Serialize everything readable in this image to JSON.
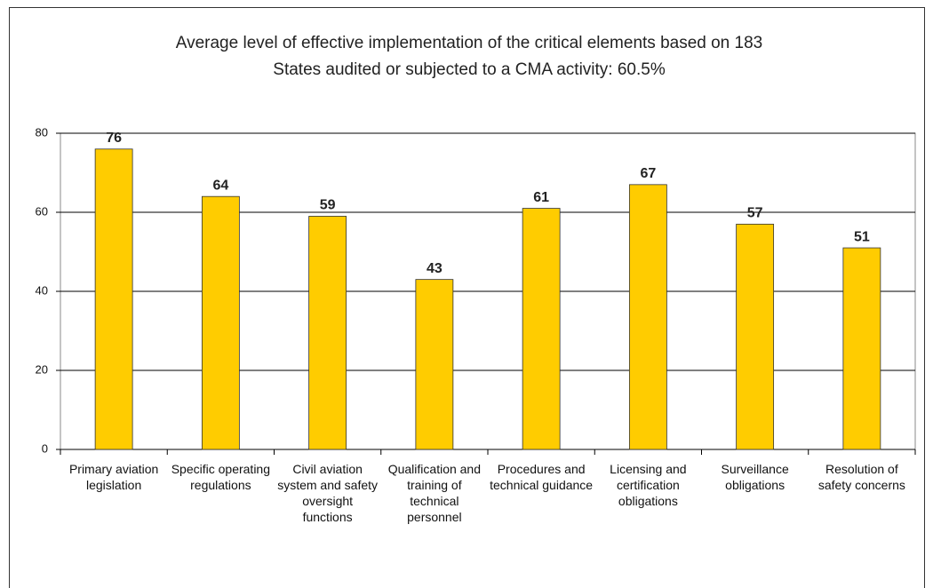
{
  "chart_data": {
    "type": "bar",
    "title": "Average level of effective implementation of the critical elements based on 183 States audited or subjected to a CMA activity: 60.5%",
    "categories": [
      "Primary aviation legislation",
      "Specific operating regulations",
      "Civil aviation system and safety oversight functions",
      "Qualification and training of technical personnel",
      "Procedures and technical guidance",
      "Licensing and certification obligations",
      "Surveillance obligations",
      "Resolution of safety concerns"
    ],
    "values": [
      76,
      64,
      59,
      43,
      61,
      67,
      57,
      51
    ],
    "color": "#ffcc00",
    "ylim": [
      0,
      80
    ],
    "yticks": [
      0,
      20,
      40,
      60,
      80
    ],
    "grid": true
  }
}
